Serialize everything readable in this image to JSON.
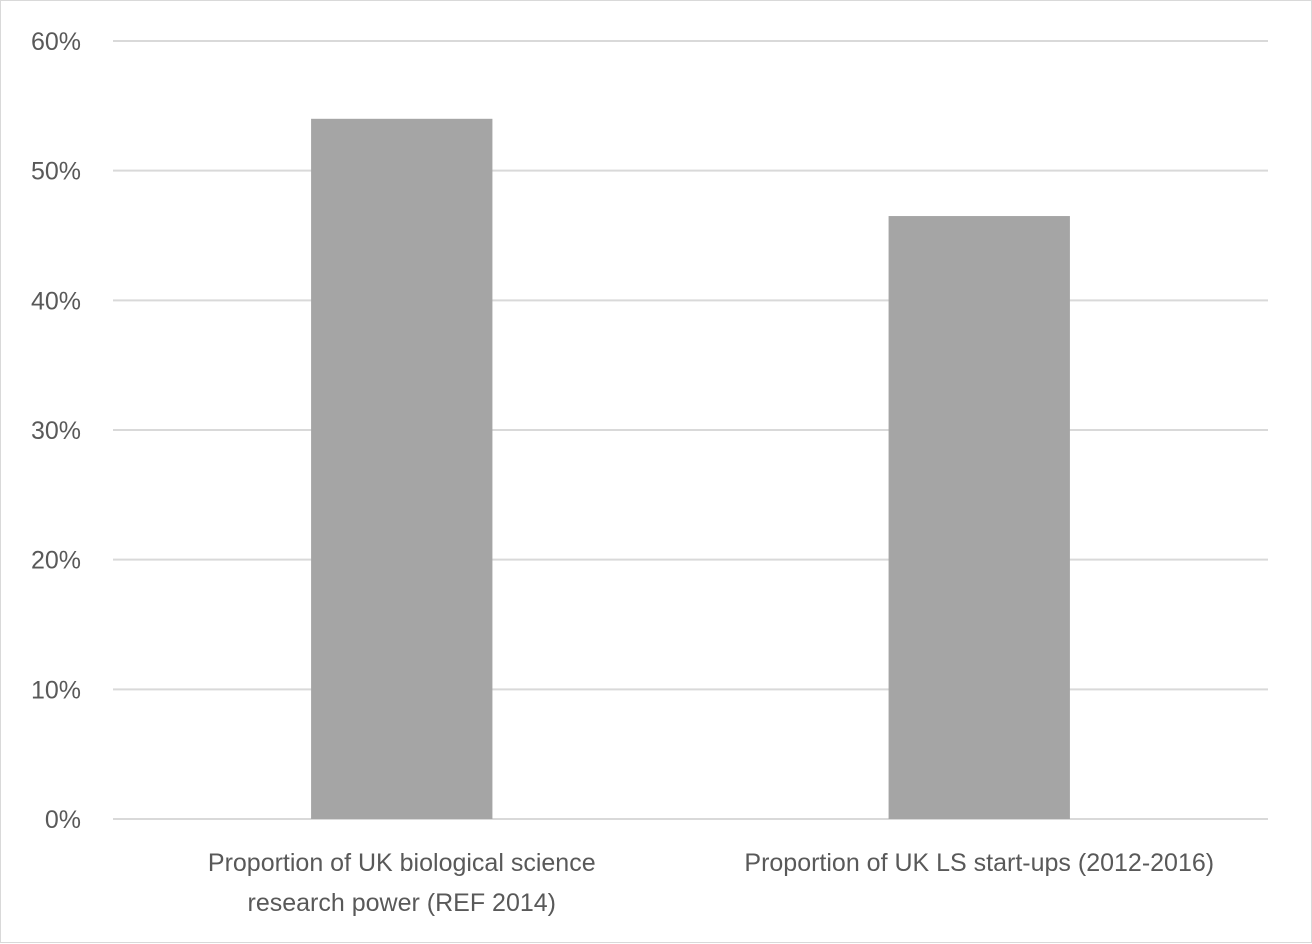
{
  "chart_data": {
    "type": "bar",
    "categories": [
      [
        "Proportion of UK biological science",
        "research power (REF 2014)"
      ],
      [
        "Proportion of UK LS start-ups (2012-2016)"
      ]
    ],
    "values": [
      0.54,
      0.465
    ],
    "ylim": [
      0,
      0.6
    ],
    "yticks": [
      0,
      0.1,
      0.2,
      0.3,
      0.4,
      0.5,
      0.6
    ],
    "ytick_labels": [
      "0%",
      "10%",
      "20%",
      "30%",
      "40%",
      "50%",
      "60%"
    ],
    "grid": true,
    "legend": "none",
    "colors": {
      "bar": "#a5a5a5",
      "grid": "#d9d9d9",
      "text": "#595959"
    }
  }
}
